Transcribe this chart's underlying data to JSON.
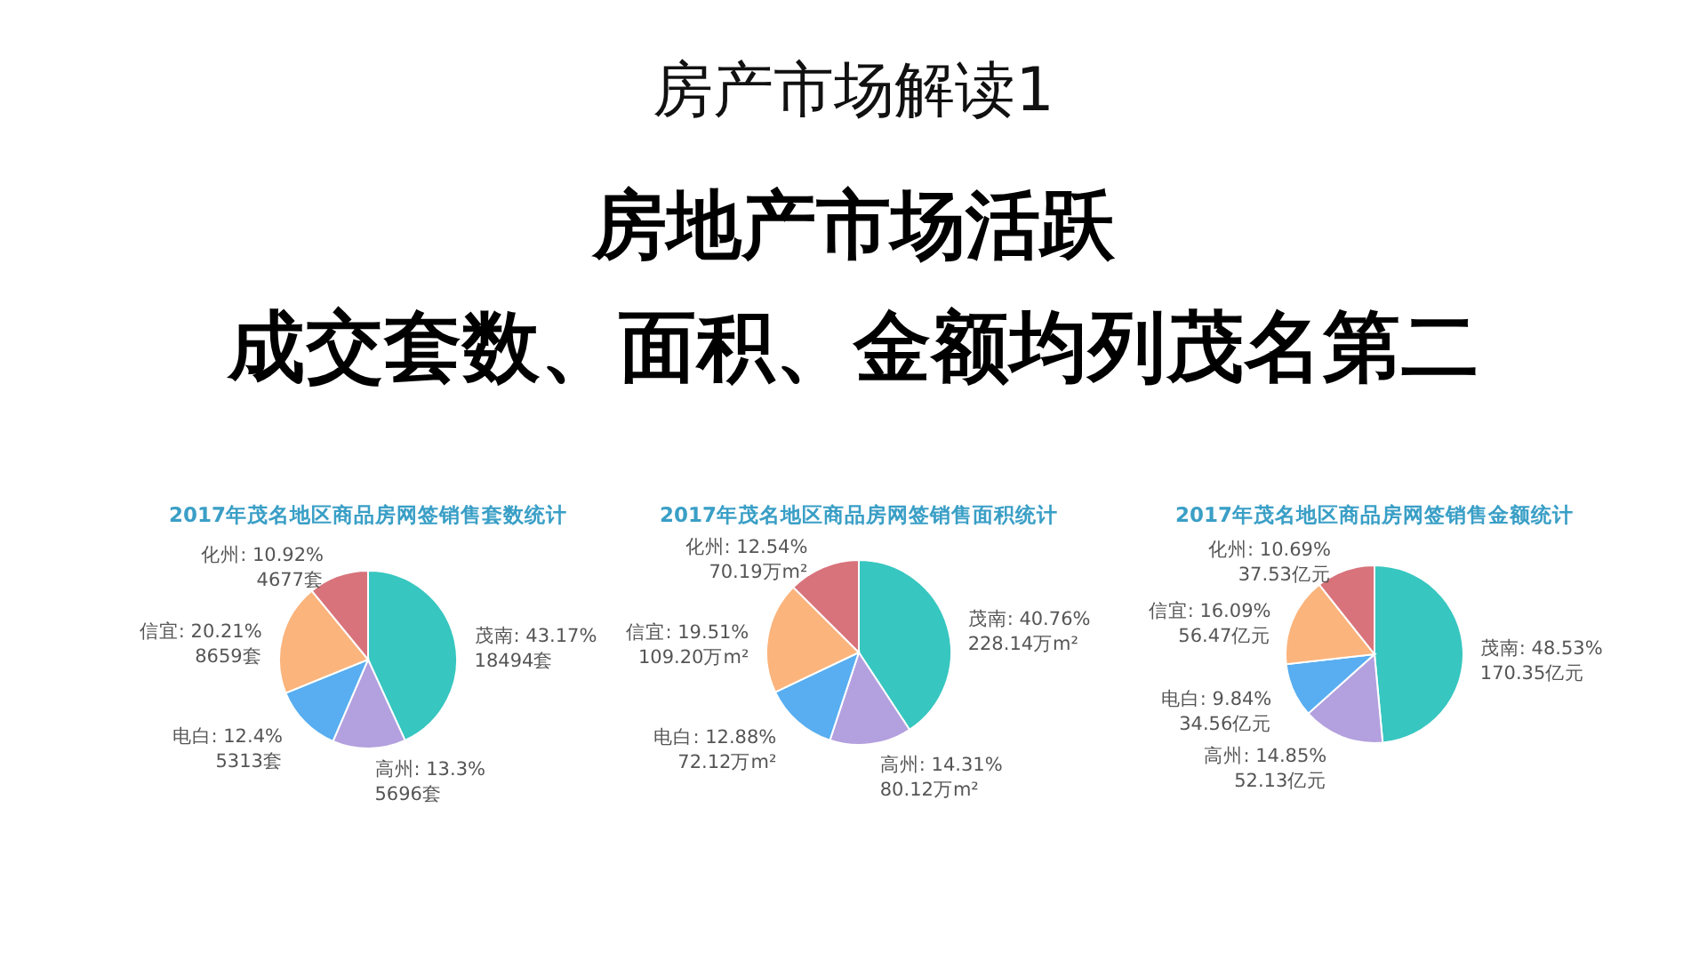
{
  "chart_data": [
    {
      "type": "other",
      "title": "房产市场解读1",
      "subtitle": "房地产市场活跃",
      "annotations": [
        "成交套数、面积、金额均列茂名第二"
      ]
    },
    {
      "type": "pie",
      "title": "2017年茂名地区商品房网签销售套数统计",
      "categories": [
        "茂南",
        "高州",
        "电白",
        "信宜",
        "化州"
      ],
      "values": [
        18494,
        5696,
        5313,
        8659,
        4677
      ],
      "colors": [
        "#37c6c0",
        "#b3a0de",
        "#58aef0",
        "#fbb47c",
        "#d8737b"
      ],
      "value_labels": [
        "43.17%\n18494套",
        "13.3%\n5696套",
        "12.4%\n5313套",
        "20.21%\n8659套",
        "10.92%\n4677套"
      ]
    },
    {
      "type": "pie",
      "title": "2017年茂名地区商品房网签销售面积统计",
      "categories": [
        "茂南",
        "高州",
        "电白",
        "信宜",
        "化州"
      ],
      "values": [
        228.14,
        80.12,
        72.12,
        109.2,
        70.19
      ],
      "colors": [
        "#37c6c0",
        "#b3a0de",
        "#58aef0",
        "#fbb47c",
        "#d8737b"
      ],
      "value_labels": [
        "40.76%\n228.14万m²",
        "14.31%\n80.12万m²",
        "12.88%\n72.12万m²",
        "19.51%\n109.20万m²",
        "12.54%\n70.19万m²"
      ]
    },
    {
      "type": "pie",
      "title": "2017年茂名地区商品房网签销售金额统计",
      "categories": [
        "茂南",
        "高州",
        "电白",
        "信宜",
        "化州"
      ],
      "values": [
        170.35,
        52.13,
        34.56,
        56.47,
        37.53
      ],
      "colors": [
        "#37c6c0",
        "#b3a0de",
        "#58aef0",
        "#fbb47c",
        "#d8737b"
      ],
      "value_labels": [
        "48.53%\n170.35亿元",
        "14.85%\n52.13亿元",
        "9.84%\n34.56亿元",
        "16.09%\n56.47亿元",
        "10.69%\n37.53亿元"
      ]
    }
  ]
}
